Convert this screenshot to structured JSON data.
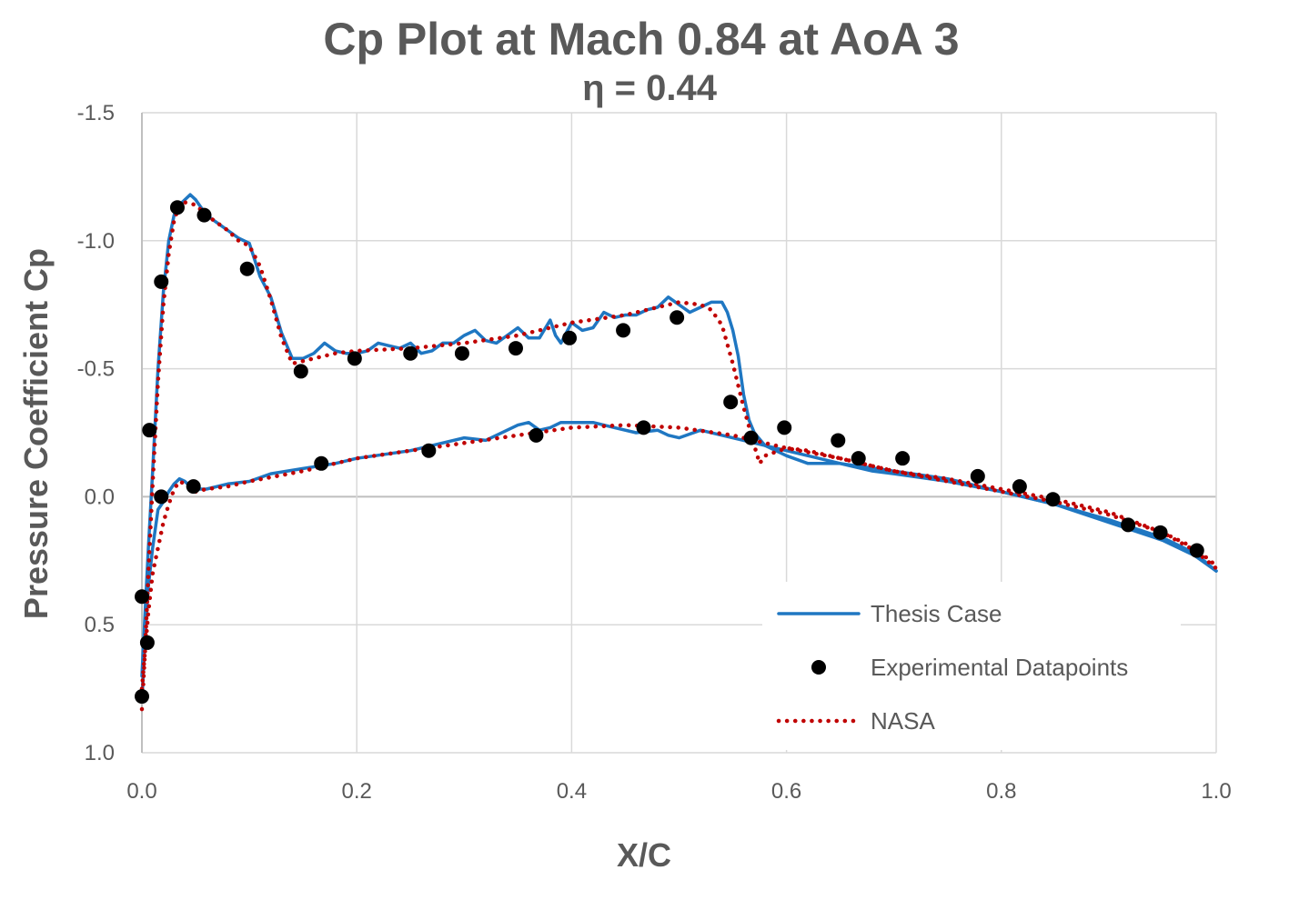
{
  "chart_data": {
    "type": "line",
    "title": "Cp Plot at Mach 0.84 at AoA 3",
    "subtitle": "η = 0.44",
    "xlabel": "X/C",
    "ylabel": "Pressure Coefficient Cp",
    "xlim": [
      0,
      1
    ],
    "ylim": [
      -1.5,
      1.0
    ],
    "y_inverted": true,
    "x_ticks": [
      "0.0",
      "0.2",
      "0.4",
      "0.6",
      "0.8",
      "1.0"
    ],
    "y_ticks": [
      "-1.5",
      "-1.0",
      "-0.5",
      "0.0",
      "0.5",
      "1.0"
    ],
    "grid": true,
    "legend_position": "bottom-right",
    "series": [
      {
        "name": "Thesis Case",
        "style": "solid-line",
        "color": "#1F77C2",
        "segments": [
          [
            [
              0.0,
              0.7
            ],
            [
              0.003,
              0.45
            ],
            [
              0.006,
              0.2
            ],
            [
              0.01,
              -0.1
            ],
            [
              0.015,
              -0.5
            ],
            [
              0.02,
              -0.8
            ],
            [
              0.025,
              -1.0
            ],
            [
              0.03,
              -1.1
            ],
            [
              0.035,
              -1.14
            ],
            [
              0.04,
              -1.16
            ],
            [
              0.045,
              -1.18
            ],
            [
              0.05,
              -1.16
            ],
            [
              0.06,
              -1.1
            ],
            [
              0.07,
              -1.07
            ],
            [
              0.08,
              -1.04
            ],
            [
              0.09,
              -1.01
            ],
            [
              0.1,
              -0.99
            ],
            [
              0.11,
              -0.86
            ],
            [
              0.12,
              -0.78
            ],
            [
              0.13,
              -0.64
            ],
            [
              0.14,
              -0.54
            ],
            [
              0.15,
              -0.54
            ],
            [
              0.16,
              -0.56
            ],
            [
              0.17,
              -0.6
            ],
            [
              0.18,
              -0.57
            ],
            [
              0.19,
              -0.56
            ],
            [
              0.2,
              -0.56
            ],
            [
              0.21,
              -0.57
            ],
            [
              0.22,
              -0.6
            ],
            [
              0.23,
              -0.59
            ],
            [
              0.24,
              -0.58
            ],
            [
              0.25,
              -0.6
            ],
            [
              0.26,
              -0.56
            ],
            [
              0.27,
              -0.57
            ],
            [
              0.28,
              -0.6
            ],
            [
              0.29,
              -0.6
            ],
            [
              0.3,
              -0.63
            ],
            [
              0.31,
              -0.65
            ],
            [
              0.32,
              -0.61
            ],
            [
              0.33,
              -0.6
            ],
            [
              0.34,
              -0.63
            ],
            [
              0.35,
              -0.66
            ],
            [
              0.36,
              -0.62
            ],
            [
              0.37,
              -0.62
            ],
            [
              0.38,
              -0.69
            ],
            [
              0.385,
              -0.63
            ],
            [
              0.39,
              -0.6
            ],
            [
              0.4,
              -0.68
            ],
            [
              0.41,
              -0.65
            ],
            [
              0.42,
              -0.66
            ],
            [
              0.43,
              -0.72
            ],
            [
              0.44,
              -0.7
            ],
            [
              0.45,
              -0.71
            ],
            [
              0.46,
              -0.71
            ],
            [
              0.47,
              -0.73
            ],
            [
              0.48,
              -0.74
            ],
            [
              0.49,
              -0.78
            ],
            [
              0.5,
              -0.75
            ],
            [
              0.51,
              -0.72
            ],
            [
              0.52,
              -0.74
            ],
            [
              0.53,
              -0.76
            ],
            [
              0.54,
              -0.76
            ],
            [
              0.545,
              -0.72
            ],
            [
              0.55,
              -0.65
            ],
            [
              0.555,
              -0.55
            ],
            [
              0.56,
              -0.4
            ],
            [
              0.565,
              -0.3
            ],
            [
              0.57,
              -0.25
            ],
            [
              0.58,
              -0.2
            ],
            [
              0.59,
              -0.18
            ],
            [
              0.6,
              -0.16
            ],
            [
              0.62,
              -0.13
            ],
            [
              0.65,
              -0.13
            ],
            [
              0.68,
              -0.1
            ],
            [
              0.7,
              -0.09
            ],
            [
              0.75,
              -0.06
            ],
            [
              0.8,
              -0.02
            ],
            [
              0.85,
              0.03
            ],
            [
              0.9,
              0.09
            ],
            [
              0.95,
              0.16
            ],
            [
              0.98,
              0.22
            ],
            [
              1.0,
              0.29
            ]
          ],
          [
            [
              0.0,
              0.8
            ],
            [
              0.003,
              0.55
            ],
            [
              0.006,
              0.35
            ],
            [
              0.01,
              0.2
            ],
            [
              0.015,
              0.05
            ],
            [
              0.02,
              0.02
            ],
            [
              0.025,
              -0.02
            ],
            [
              0.03,
              -0.05
            ],
            [
              0.035,
              -0.07
            ],
            [
              0.04,
              -0.06
            ],
            [
              0.045,
              -0.04
            ],
            [
              0.05,
              -0.03
            ],
            [
              0.06,
              -0.03
            ],
            [
              0.08,
              -0.05
            ],
            [
              0.1,
              -0.06
            ],
            [
              0.12,
              -0.09
            ],
            [
              0.15,
              -0.11
            ],
            [
              0.18,
              -0.13
            ],
            [
              0.2,
              -0.15
            ],
            [
              0.25,
              -0.18
            ],
            [
              0.3,
              -0.23
            ],
            [
              0.32,
              -0.22
            ],
            [
              0.34,
              -0.26
            ],
            [
              0.35,
              -0.28
            ],
            [
              0.36,
              -0.29
            ],
            [
              0.37,
              -0.26
            ],
            [
              0.38,
              -0.27
            ],
            [
              0.39,
              -0.29
            ],
            [
              0.4,
              -0.29
            ],
            [
              0.42,
              -0.29
            ],
            [
              0.44,
              -0.27
            ],
            [
              0.46,
              -0.25
            ],
            [
              0.48,
              -0.26
            ],
            [
              0.49,
              -0.24
            ],
            [
              0.5,
              -0.23
            ],
            [
              0.52,
              -0.26
            ],
            [
              0.54,
              -0.24
            ],
            [
              0.56,
              -0.22
            ],
            [
              0.58,
              -0.2
            ],
            [
              0.6,
              -0.18
            ],
            [
              0.62,
              -0.16
            ],
            [
              0.65,
              -0.13
            ],
            [
              0.7,
              -0.1
            ],
            [
              0.75,
              -0.07
            ],
            [
              0.8,
              -0.02
            ],
            [
              0.85,
              0.03
            ],
            [
              0.9,
              0.1
            ],
            [
              0.95,
              0.17
            ],
            [
              0.98,
              0.23
            ],
            [
              1.0,
              0.29
            ]
          ]
        ]
      },
      {
        "name": "NASA",
        "style": "dotted-line",
        "color": "#C00000",
        "segments": [
          [
            [
              0.0,
              0.83
            ],
            [
              0.003,
              0.6
            ],
            [
              0.006,
              0.3
            ],
            [
              0.01,
              -0.05
            ],
            [
              0.015,
              -0.45
            ],
            [
              0.02,
              -0.75
            ],
            [
              0.025,
              -0.95
            ],
            [
              0.03,
              -1.08
            ],
            [
              0.035,
              -1.14
            ],
            [
              0.04,
              -1.15
            ],
            [
              0.05,
              -1.14
            ],
            [
              0.06,
              -1.1
            ],
            [
              0.07,
              -1.07
            ],
            [
              0.08,
              -1.04
            ],
            [
              0.09,
              -1.0
            ],
            [
              0.1,
              -0.98
            ],
            [
              0.11,
              -0.9
            ],
            [
              0.12,
              -0.77
            ],
            [
              0.13,
              -0.62
            ],
            [
              0.14,
              -0.52
            ],
            [
              0.16,
              -0.54
            ],
            [
              0.18,
              -0.56
            ],
            [
              0.2,
              -0.57
            ],
            [
              0.25,
              -0.58
            ],
            [
              0.3,
              -0.6
            ],
            [
              0.35,
              -0.63
            ],
            [
              0.4,
              -0.68
            ],
            [
              0.45,
              -0.71
            ],
            [
              0.5,
              -0.76
            ],
            [
              0.52,
              -0.75
            ],
            [
              0.53,
              -0.73
            ],
            [
              0.54,
              -0.67
            ],
            [
              0.55,
              -0.52
            ],
            [
              0.56,
              -0.35
            ],
            [
              0.57,
              -0.2
            ],
            [
              0.575,
              -0.13
            ],
            [
              0.58,
              -0.16
            ],
            [
              0.6,
              -0.19
            ],
            [
              0.62,
              -0.18
            ],
            [
              0.65,
              -0.15
            ],
            [
              0.7,
              -0.1
            ],
            [
              0.75,
              -0.07
            ],
            [
              0.8,
              -0.03
            ],
            [
              0.85,
              0.01
            ],
            [
              0.9,
              0.06
            ],
            [
              0.95,
              0.14
            ],
            [
              0.98,
              0.21
            ],
            [
              1.0,
              0.28
            ]
          ],
          [
            [
              0.0,
              0.75
            ],
            [
              0.003,
              0.6
            ],
            [
              0.006,
              0.45
            ],
            [
              0.01,
              0.3
            ],
            [
              0.015,
              0.2
            ],
            [
              0.02,
              0.1
            ],
            [
              0.025,
              0.03
            ],
            [
              0.03,
              -0.03
            ],
            [
              0.035,
              -0.06
            ],
            [
              0.04,
              -0.05
            ],
            [
              0.05,
              -0.02
            ],
            [
              0.06,
              -0.03
            ],
            [
              0.08,
              -0.04
            ],
            [
              0.1,
              -0.06
            ],
            [
              0.15,
              -0.1
            ],
            [
              0.2,
              -0.15
            ],
            [
              0.25,
              -0.18
            ],
            [
              0.3,
              -0.21
            ],
            [
              0.35,
              -0.24
            ],
            [
              0.4,
              -0.27
            ],
            [
              0.45,
              -0.28
            ],
            [
              0.5,
              -0.27
            ],
            [
              0.55,
              -0.24
            ],
            [
              0.6,
              -0.19
            ],
            [
              0.65,
              -0.15
            ],
            [
              0.7,
              -0.1
            ],
            [
              0.75,
              -0.06
            ],
            [
              0.8,
              -0.02
            ],
            [
              0.85,
              0.02
            ],
            [
              0.9,
              0.07
            ],
            [
              0.95,
              0.14
            ],
            [
              0.98,
              0.2
            ],
            [
              1.0,
              0.27
            ]
          ]
        ]
      },
      {
        "name": "Experimental Datapoints",
        "style": "markers",
        "color": "#000000",
        "points": [
          [
            0.0,
            0.39
          ],
          [
            0.005,
            0.57
          ],
          [
            0.0,
            0.78
          ],
          [
            0.007,
            -0.26
          ],
          [
            0.018,
            0.0
          ],
          [
            0.048,
            -0.04
          ],
          [
            0.018,
            -0.84
          ],
          [
            0.033,
            -1.13
          ],
          [
            0.058,
            -1.1
          ],
          [
            0.098,
            -0.89
          ],
          [
            0.148,
            -0.49
          ],
          [
            0.198,
            -0.54
          ],
          [
            0.25,
            -0.56
          ],
          [
            0.298,
            -0.56
          ],
          [
            0.348,
            -0.58
          ],
          [
            0.398,
            -0.62
          ],
          [
            0.448,
            -0.65
          ],
          [
            0.498,
            -0.7
          ],
          [
            0.548,
            -0.37
          ],
          [
            0.567,
            -0.23
          ],
          [
            0.598,
            -0.27
          ],
          [
            0.648,
            -0.22
          ],
          [
            0.667,
            -0.15
          ],
          [
            0.708,
            -0.15
          ],
          [
            0.778,
            -0.08
          ],
          [
            0.817,
            -0.04
          ],
          [
            0.848,
            0.01
          ],
          [
            0.918,
            0.11
          ],
          [
            0.948,
            0.14
          ],
          [
            0.982,
            0.21
          ],
          [
            0.167,
            -0.13
          ],
          [
            0.267,
            -0.18
          ],
          [
            0.367,
            -0.24
          ],
          [
            0.467,
            -0.27
          ]
        ]
      }
    ]
  }
}
